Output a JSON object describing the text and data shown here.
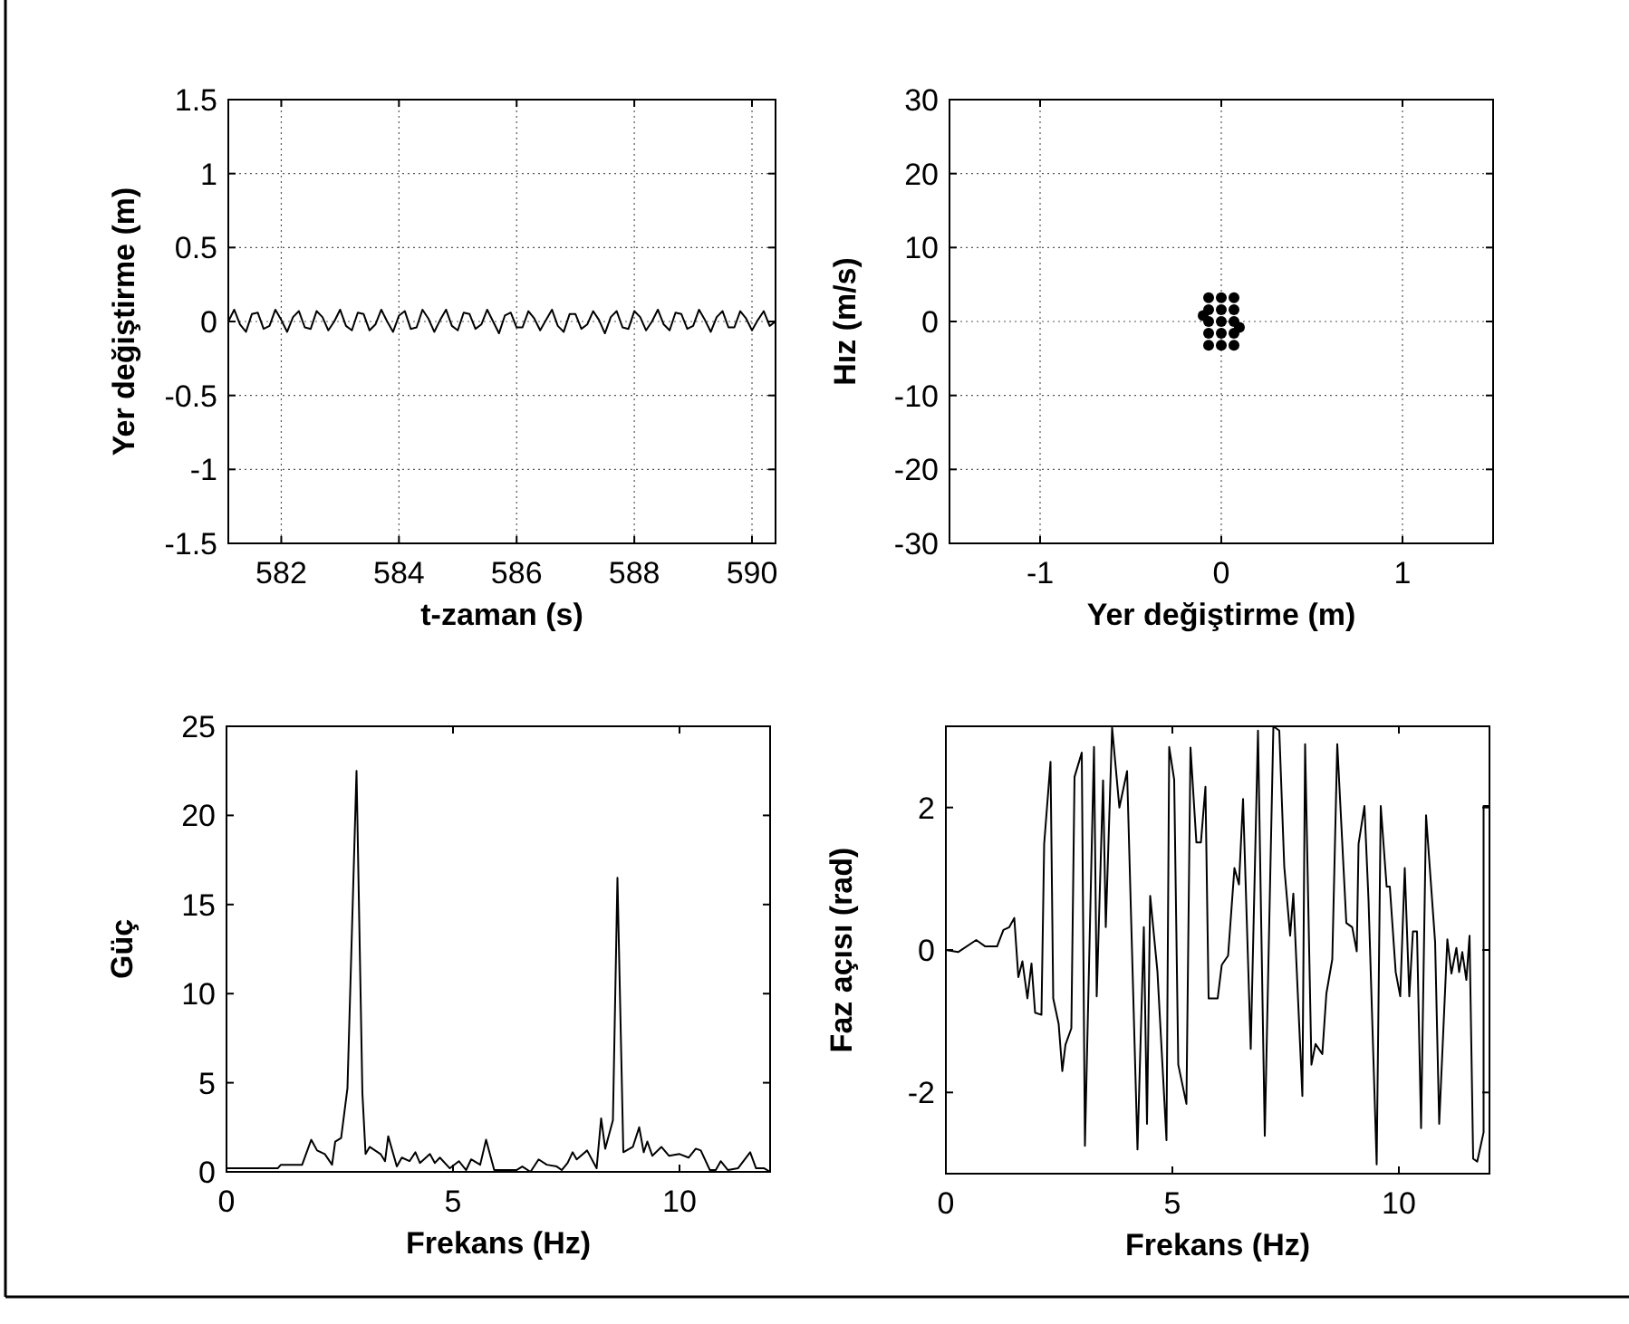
{
  "chart_data": [
    {
      "type": "line",
      "xlabel": "t-zaman (s)",
      "ylabel": "Yer değiştirme (m)",
      "xlim": [
        581.1,
        590.4
      ],
      "xticks": [
        582,
        584,
        586,
        588,
        590
      ],
      "ylim": [
        -1.5,
        1.5
      ],
      "yticks": [
        -1.5,
        -1,
        -0.5,
        0,
        0.5,
        1,
        1.5
      ],
      "grid": true,
      "series": [
        {
          "color": "#000000",
          "x": [
            581.1,
            581.2,
            581.3,
            581.4,
            581.5,
            581.6,
            581.7,
            581.8,
            581.9,
            582.0,
            582.1,
            582.2,
            582.3,
            582.4,
            582.5,
            582.6,
            582.7,
            582.8,
            582.9,
            583.0,
            583.1,
            583.2,
            583.3,
            583.4,
            583.5,
            583.6,
            583.7,
            583.8,
            583.9,
            584.0,
            584.1,
            584.2,
            584.3,
            584.4,
            584.5,
            584.6,
            584.7,
            584.8,
            584.9,
            585.0,
            585.1,
            585.2,
            585.3,
            585.4,
            585.5,
            585.6,
            585.7,
            585.8,
            585.9,
            586.0,
            586.1,
            586.2,
            586.3,
            586.4,
            586.5,
            586.6,
            586.7,
            586.8,
            586.9,
            587.0,
            587.1,
            587.2,
            587.3,
            587.4,
            587.5,
            587.6,
            587.7,
            587.8,
            587.9,
            588.0,
            588.1,
            588.2,
            588.3,
            588.4,
            588.5,
            588.6,
            588.7,
            588.8,
            588.9,
            589.0,
            589.1,
            589.2,
            589.3,
            589.4,
            589.5,
            589.6,
            589.7,
            589.8,
            589.9,
            590.0,
            590.1,
            590.2,
            590.3,
            590.4
          ],
          "values": [
            0,
            0.08,
            -0.02,
            -0.07,
            0.05,
            0.06,
            -0.05,
            -0.03,
            0.08,
            0.01,
            -0.07,
            0.03,
            0.07,
            -0.04,
            -0.05,
            0.07,
            0.03,
            -0.06,
            0.0,
            0.08,
            -0.03,
            -0.06,
            0.06,
            0.05,
            -0.06,
            -0.02,
            0.08,
            0.0,
            -0.07,
            0.04,
            0.07,
            -0.05,
            -0.04,
            0.08,
            0.02,
            -0.07,
            0.01,
            0.08,
            -0.03,
            -0.06,
            0.06,
            0.05,
            -0.05,
            -0.02,
            0.08,
            0.0,
            -0.08,
            0.04,
            0.06,
            -0.04,
            -0.04,
            0.07,
            0.02,
            -0.06,
            0.01,
            0.08,
            -0.03,
            -0.07,
            0.05,
            0.05,
            -0.05,
            -0.02,
            0.07,
            0.01,
            -0.08,
            0.03,
            0.07,
            -0.04,
            -0.05,
            0.07,
            0.03,
            -0.06,
            0.0,
            0.08,
            -0.02,
            -0.06,
            0.06,
            0.05,
            -0.05,
            -0.03,
            0.08,
            0.01,
            -0.07,
            0.03,
            0.07,
            -0.04,
            -0.04,
            0.07,
            0.02,
            -0.06,
            0.01,
            0.07,
            -0.03,
            0.0
          ]
        }
      ]
    },
    {
      "type": "scatter",
      "xlabel": "Yer değiştirme (m)",
      "ylabel": "Hız (m/s)",
      "xlim": [
        -1.5,
        1.5
      ],
      "xticks": [
        -1,
        0,
        1
      ],
      "ylim": [
        -30,
        30
      ],
      "yticks": [
        -30,
        -20,
        -10,
        0,
        10,
        20,
        30
      ],
      "grid": true,
      "marker": "circle",
      "series": [
        {
          "color": "#000000",
          "x": [
            -0.07,
            0,
            0.07,
            -0.07,
            0,
            0.07,
            -0.07,
            0,
            0.07,
            -0.07,
            0,
            0.07,
            -0.07,
            0,
            0.07,
            -0.1,
            0.1
          ],
          "values": [
            3.2,
            3.2,
            3.2,
            1.6,
            1.6,
            1.6,
            0,
            0,
            0,
            -1.6,
            -1.6,
            -1.6,
            -3.2,
            -3.2,
            -3.2,
            0.8,
            -0.8
          ]
        }
      ]
    },
    {
      "type": "line",
      "xlabel": "Frekans (Hz)",
      "ylabel": "Güç",
      "xlim": [
        0,
        12
      ],
      "xticks": [
        0,
        5,
        10
      ],
      "ylim": [
        0,
        25
      ],
      "yticks": [
        0,
        5,
        10,
        15,
        20,
        25
      ],
      "grid": false,
      "series": [
        {
          "color": "#000000",
          "x": [
            0,
            1.13,
            1.2,
            1.67,
            1.87,
            2.0,
            2.17,
            2.33,
            2.4,
            2.53,
            2.67,
            2.87,
            3.0,
            3.07,
            3.16,
            3.4,
            3.5,
            3.57,
            3.76,
            3.87,
            4.04,
            4.17,
            4.27,
            4.49,
            4.6,
            4.71,
            4.93,
            5.13,
            5.29,
            5.4,
            5.6,
            5.73,
            5.91,
            6.4,
            6.53,
            6.71,
            6.89,
            7.07,
            7.29,
            7.4,
            7.53,
            7.64,
            7.73,
            7.96,
            8.17,
            8.27,
            8.36,
            8.53,
            8.63,
            8.76,
            8.97,
            9.11,
            9.21,
            9.29,
            9.4,
            9.6,
            9.77,
            10.0,
            10.2,
            10.36,
            10.47,
            10.67,
            10.8,
            10.91,
            11.07,
            11.29,
            11.56,
            11.69,
            11.87,
            12
          ],
          "values": [
            0.2,
            0.2,
            0.4,
            0.4,
            1.8,
            1.2,
            1.0,
            0.4,
            1.7,
            1.9,
            4.7,
            22.5,
            4.4,
            1.0,
            1.4,
            1.0,
            0.6,
            2.0,
            0.3,
            0.8,
            0.6,
            1.1,
            0.5,
            1.0,
            0.5,
            0.8,
            0.2,
            0.6,
            0.1,
            0.7,
            0.4,
            1.8,
            0.1,
            0.1,
            0.3,
            0,
            0.7,
            0.4,
            0.3,
            0.1,
            0.5,
            1.1,
            0.7,
            1.2,
            0.2,
            3.0,
            1.3,
            2.9,
            16.5,
            1.1,
            1.4,
            2.5,
            1.1,
            1.7,
            0.9,
            1.4,
            0.9,
            1.0,
            0.8,
            1.3,
            1.2,
            0.1,
            0.1,
            0.6,
            0.1,
            0.2,
            1.1,
            0.2,
            0.2,
            0
          ]
        }
      ]
    },
    {
      "type": "line",
      "xlabel": "Frekans (Hz)",
      "ylabel": "Faz açısı (rad)",
      "xlim": [
        0,
        12
      ],
      "xticks": [
        0,
        5,
        10
      ],
      "ylim": [
        -3.14,
        3.14
      ],
      "yticks": [
        -2,
        0,
        2
      ],
      "grid": false,
      "series": [
        {
          "color": "#000000",
          "x": [
            0,
            0.27,
            0.67,
            0.87,
            1.13,
            1.27,
            1.4,
            1.51,
            1.6,
            1.69,
            1.8,
            1.89,
            1.97,
            2.11,
            2.17,
            2.31,
            2.37,
            2.49,
            2.57,
            2.64,
            2.77,
            2.84,
            3.0,
            3.07,
            3.27,
            3.33,
            3.47,
            3.53,
            3.67,
            3.83,
            4.0,
            4.23,
            4.37,
            4.44,
            4.51,
            4.67,
            4.87,
            4.93,
            5.04,
            5.13,
            5.31,
            5.4,
            5.53,
            5.63,
            5.73,
            5.8,
            6.0,
            6.09,
            6.23,
            6.37,
            6.47,
            6.56,
            6.73,
            6.89,
            7.04,
            7.23,
            7.36,
            7.47,
            7.6,
            7.67,
            7.87,
            7.93,
            8.07,
            8.16,
            8.31,
            8.4,
            8.53,
            8.64,
            8.84,
            8.97,
            9.07,
            9.11,
            9.24,
            9.33,
            9.51,
            9.6,
            9.73,
            9.8,
            9.93,
            10.03,
            10.13,
            10.23,
            10.31,
            10.4,
            10.49,
            10.6,
            10.8,
            10.89,
            11.07,
            11.16,
            11.27,
            11.33,
            11.4,
            11.49,
            11.56,
            11.64,
            11.73,
            11.87,
            11.87,
            12
          ],
          "values": [
            0,
            -0.03,
            0.14,
            0.05,
            0.05,
            0.28,
            0.32,
            0.45,
            -0.38,
            -0.16,
            -0.68,
            -0.19,
            -0.88,
            -0.91,
            1.49,
            2.64,
            -0.68,
            -1.04,
            -1.7,
            -1.33,
            -1.1,
            2.43,
            2.77,
            -2.75,
            2.85,
            -0.65,
            2.38,
            0.32,
            3.12,
            2.0,
            2.51,
            -2.8,
            0.32,
            -2.44,
            0.76,
            -0.3,
            -2.67,
            2.85,
            2.39,
            -1.61,
            -2.16,
            2.84,
            1.51,
            1.51,
            2.29,
            -0.68,
            -0.68,
            -0.21,
            -0.08,
            1.15,
            0.92,
            2.12,
            -1.39,
            3.08,
            -2.61,
            3.14,
            3.08,
            1.17,
            0.2,
            0.79,
            -2.05,
            2.89,
            -1.61,
            -1.32,
            -1.46,
            -0.61,
            -0.13,
            2.89,
            0.38,
            0.32,
            -0.02,
            1.49,
            2.02,
            0.7,
            -3.01,
            2.02,
            0.89,
            0.89,
            -0.31,
            -0.65,
            1.15,
            -0.65,
            0.26,
            0.26,
            -2.5,
            1.89,
            0.11,
            -2.44,
            0.15,
            -0.33,
            0.03,
            -0.31,
            -0.03,
            -0.42,
            0.2,
            -2.93,
            -2.97,
            -2.56,
            2.02,
            2.02
          ]
        }
      ]
    }
  ]
}
